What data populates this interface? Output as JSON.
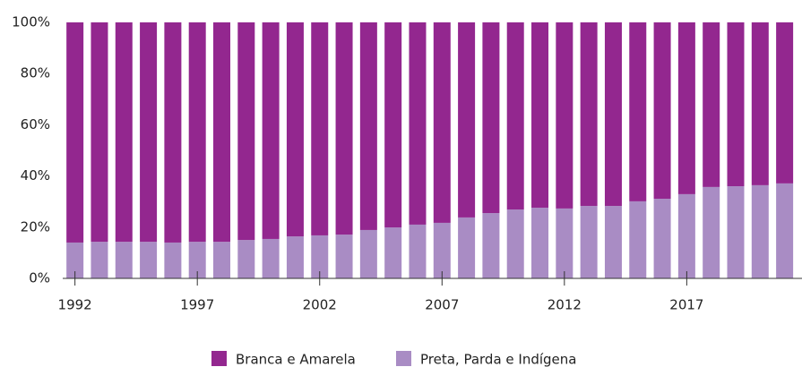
{
  "chart_data": {
    "type": "stacked_bar",
    "x": [
      1992,
      1993,
      1994,
      1995,
      1996,
      1997,
      1998,
      1999,
      2000,
      2001,
      2002,
      2003,
      2004,
      2005,
      2006,
      2007,
      2008,
      2009,
      2010,
      2011,
      2012,
      2013,
      2014,
      2015,
      2016,
      2017,
      2018,
      2019,
      2020,
      2021
    ],
    "series": [
      {
        "name": "Branca e Amarela",
        "color": "#93278f",
        "values": [
          86.0,
          85.7,
          85.7,
          85.7,
          86.0,
          85.7,
          85.7,
          85.0,
          84.6,
          83.6,
          83.2,
          82.9,
          81.1,
          80.1,
          79.0,
          78.3,
          76.2,
          74.5,
          73.1,
          72.4,
          72.7,
          71.7,
          71.7,
          69.9,
          68.9,
          67.1,
          64.3,
          64.0,
          63.6,
          62.9
        ]
      },
      {
        "name": "Preta, Parda e Indígena",
        "color": "#a98cc4",
        "values": [
          14.0,
          14.3,
          14.3,
          14.3,
          14.0,
          14.3,
          14.3,
          15.0,
          15.4,
          16.4,
          16.8,
          17.1,
          18.9,
          19.9,
          21.0,
          21.7,
          23.8,
          25.5,
          26.9,
          27.6,
          27.3,
          28.3,
          28.3,
          30.1,
          31.1,
          32.9,
          35.7,
          36.0,
          36.4,
          37.1
        ]
      }
    ],
    "xlim": [
      1991.5,
      2021.6
    ],
    "xticks": [
      1992,
      1997,
      2002,
      2007,
      2012,
      2017
    ],
    "ylim": [
      0,
      100
    ],
    "yticks": [
      {
        "value": 0,
        "label": "0%"
      },
      {
        "value": 20,
        "label": "20%"
      },
      {
        "value": 40,
        "label": "40%"
      },
      {
        "value": 60,
        "label": "60%"
      },
      {
        "value": 80,
        "label": "80%"
      },
      {
        "value": 100,
        "label": "100%"
      }
    ],
    "grid": false,
    "legend": "bottom"
  }
}
